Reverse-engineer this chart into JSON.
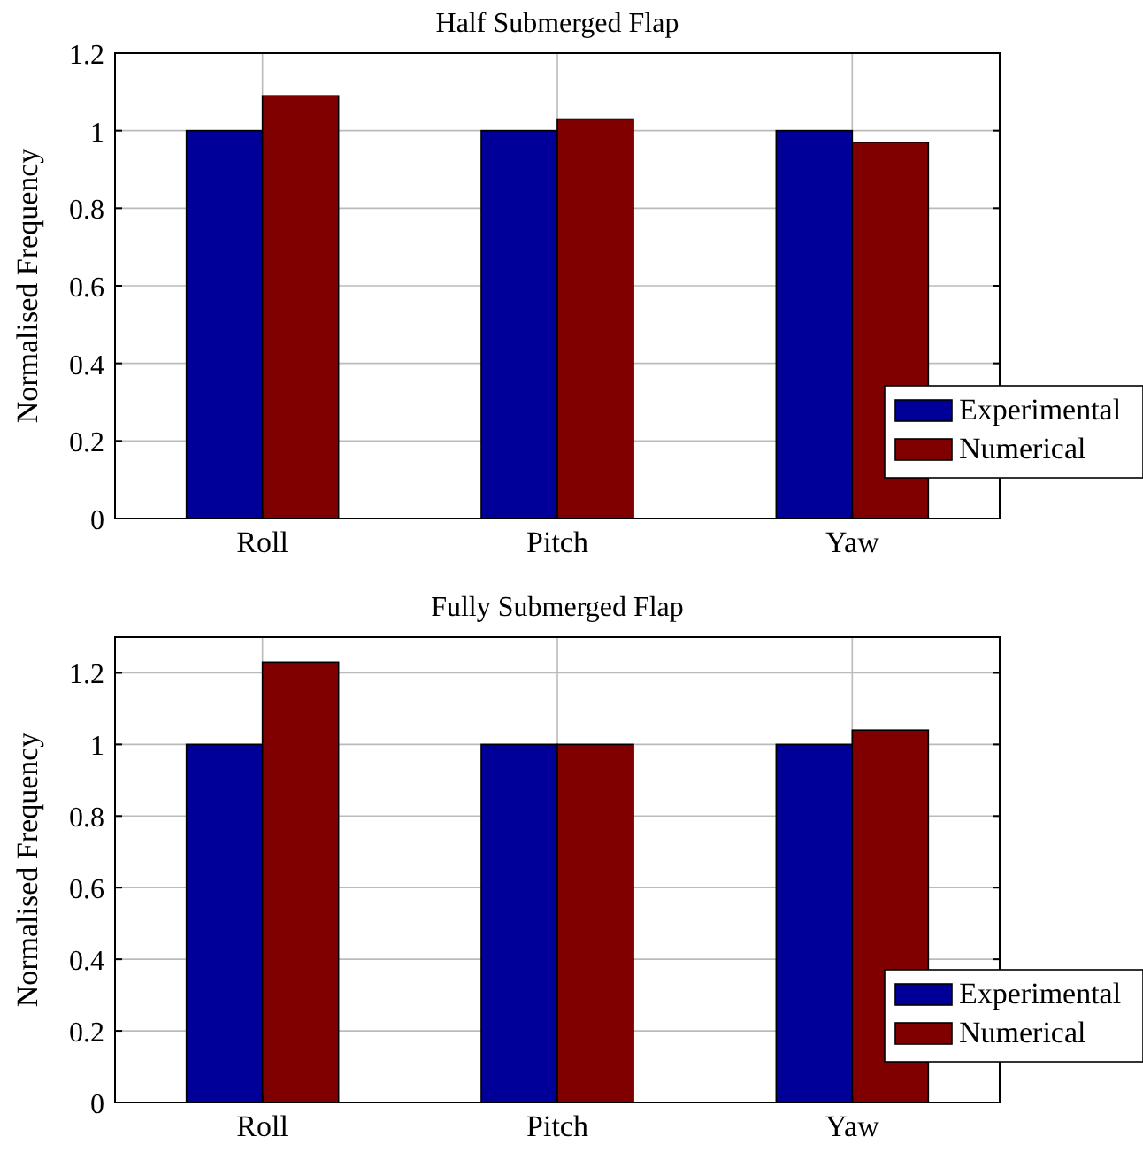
{
  "chart_data": [
    {
      "type": "bar",
      "title": "Half Submerged Flap",
      "ylabel": "Normalised Frequency",
      "categories": [
        "Roll",
        "Pitch",
        "Yaw"
      ],
      "series": [
        {
          "name": "Experimental",
          "color": "#000099",
          "values": [
            1,
            1,
            1
          ]
        },
        {
          "name": "Numerical",
          "color": "#800000",
          "values": [
            1.09,
            1.03,
            0.97
          ]
        }
      ],
      "ylim": [
        0,
        1.2
      ],
      "yticks": [
        0,
        0.2,
        0.4,
        0.6,
        0.8,
        1,
        1.2
      ],
      "grid": true,
      "legend": "bottom right"
    },
    {
      "type": "bar",
      "title": "Fully Submerged Flap",
      "ylabel": "Normalised Frequency",
      "categories": [
        "Roll",
        "Pitch",
        "Yaw"
      ],
      "series": [
        {
          "name": "Experimental",
          "color": "#000099",
          "values": [
            1,
            1,
            1
          ]
        },
        {
          "name": "Numerical",
          "color": "#800000",
          "values": [
            1.23,
            1,
            1.04
          ]
        }
      ],
      "ylim": [
        0,
        1.3
      ],
      "yticks": [
        0,
        0.2,
        0.4,
        0.6,
        0.8,
        1,
        1.2
      ],
      "grid": true,
      "legend": "bottom right"
    }
  ]
}
